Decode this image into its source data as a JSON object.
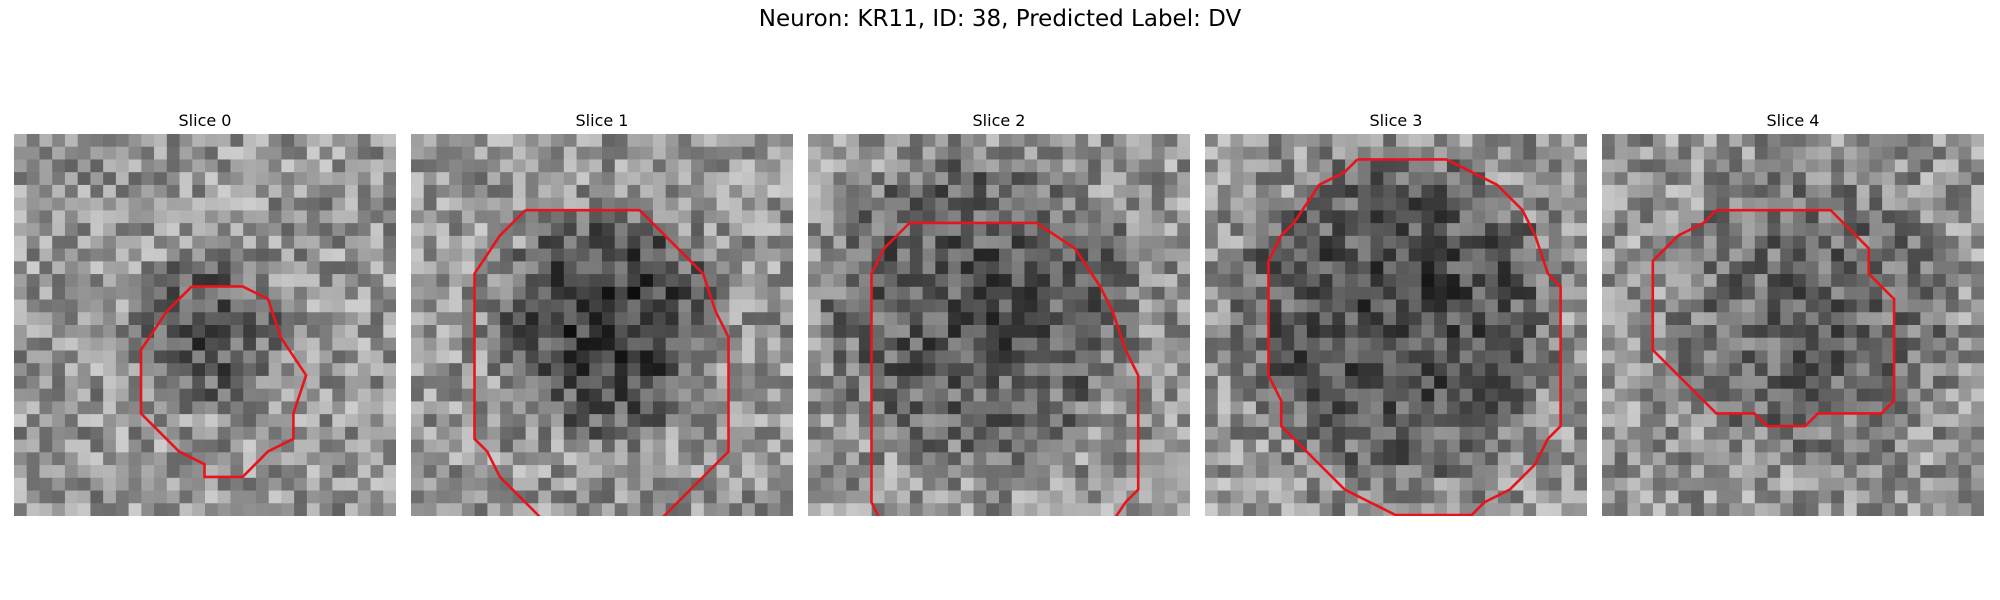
{
  "title": "Neuron: KR11, ID: 38, Predicted Label: DV",
  "panels": [
    {
      "label": "Slice 0",
      "contour": [
        [
          4,
          0
        ],
        [
          3,
          1
        ],
        [
          2,
          2
        ],
        [
          0,
          5
        ],
        [
          0,
          10
        ],
        [
          3,
          13
        ],
        [
          5,
          14
        ],
        [
          5,
          15
        ],
        [
          8,
          15
        ],
        [
          10,
          13
        ],
        [
          12,
          12
        ],
        [
          12,
          10
        ],
        [
          13,
          7
        ],
        [
          11,
          4
        ],
        [
          10,
          1
        ],
        [
          8,
          0
        ]
      ]
    },
    {
      "label": "Slice 1",
      "contour": [
        [
          4,
          0
        ],
        [
          2,
          2
        ],
        [
          0,
          5
        ],
        [
          0,
          18
        ],
        [
          1,
          19
        ],
        [
          2,
          21
        ],
        [
          3,
          22
        ],
        [
          4,
          23
        ],
        [
          5,
          24
        ],
        [
          6,
          25
        ],
        [
          7,
          26
        ],
        [
          12,
          26
        ],
        [
          13,
          25
        ],
        [
          14,
          25
        ],
        [
          16,
          23
        ],
        [
          17,
          22
        ],
        [
          20,
          19
        ],
        [
          20,
          10
        ],
        [
          19,
          8
        ],
        [
          18,
          5
        ],
        [
          16,
          3
        ],
        [
          15,
          2
        ],
        [
          13,
          0
        ]
      ]
    },
    {
      "label": "Slice 2",
      "contour": [
        [
          3,
          0
        ],
        [
          1,
          2
        ],
        [
          0,
          4
        ],
        [
          0,
          22
        ],
        [
          1,
          24
        ],
        [
          3,
          26
        ],
        [
          5,
          27
        ],
        [
          6,
          28
        ],
        [
          14,
          28
        ],
        [
          16,
          27
        ],
        [
          18,
          25
        ],
        [
          20,
          22
        ],
        [
          21,
          21
        ],
        [
          21,
          12
        ],
        [
          20,
          10
        ],
        [
          19,
          7
        ],
        [
          18,
          5
        ],
        [
          16,
          2
        ],
        [
          13,
          0
        ]
      ]
    },
    {
      "label": "Slice 3",
      "contour": [
        [
          7,
          0
        ],
        [
          6,
          1
        ],
        [
          4,
          2
        ],
        [
          2,
          5
        ],
        [
          1,
          6
        ],
        [
          0,
          8
        ],
        [
          0,
          17
        ],
        [
          1,
          19
        ],
        [
          1,
          21
        ],
        [
          2,
          22
        ],
        [
          4,
          24
        ],
        [
          6,
          26
        ],
        [
          8,
          27
        ],
        [
          10,
          28
        ],
        [
          16,
          28
        ],
        [
          17,
          27
        ],
        [
          19,
          26
        ],
        [
          21,
          24
        ],
        [
          22,
          22
        ],
        [
          23,
          21
        ],
        [
          23,
          18
        ],
        [
          23,
          10
        ],
        [
          22,
          9
        ],
        [
          21,
          6
        ],
        [
          20,
          4
        ],
        [
          18,
          2
        ],
        [
          16,
          1
        ],
        [
          14,
          0
        ]
      ]
    },
    {
      "label": "Slice 4",
      "contour": [
        [
          5,
          0
        ],
        [
          4,
          1
        ],
        [
          2,
          2
        ],
        [
          1,
          3
        ],
        [
          0,
          4
        ],
        [
          0,
          11
        ],
        [
          2,
          13
        ],
        [
          4,
          15
        ],
        [
          5,
          16
        ],
        [
          8,
          16
        ],
        [
          9,
          17
        ],
        [
          12,
          17
        ],
        [
          13,
          16
        ],
        [
          18,
          16
        ],
        [
          19,
          15
        ],
        [
          19,
          7
        ],
        [
          17,
          5
        ],
        [
          17,
          3
        ],
        [
          16,
          2
        ],
        [
          15,
          1
        ],
        [
          14,
          0
        ]
      ]
    }
  ]
}
